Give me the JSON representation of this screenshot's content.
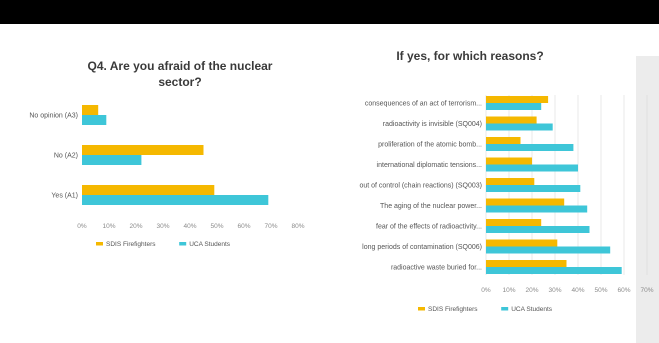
{
  "colors": {
    "sdis": "#f5b800",
    "uca": "#3ec6d8",
    "title": "#3a3a3a",
    "label": "#555555",
    "axis": "#8a8a8a",
    "grid": "#d9d9d9"
  },
  "chart_data": [
    {
      "type": "bar",
      "orientation": "horizontal",
      "title_lines": [
        "Q4. Are you afraid of the nuclear",
        "sector?"
      ],
      "categories": [
        "No opinion (A3)",
        "No (A2)",
        "Yes (A1)"
      ],
      "series": [
        {
          "name": "SDIS Firefighters",
          "values": [
            6,
            45,
            49
          ]
        },
        {
          "name": "UCA Students",
          "values": [
            9,
            22,
            69
          ]
        }
      ],
      "xlim": [
        0,
        80
      ],
      "xticks": [
        "0%",
        "10%",
        "20%",
        "30%",
        "40%",
        "50%",
        "60%",
        "70%",
        "80%"
      ],
      "grid": false,
      "legend": "bottom"
    },
    {
      "type": "bar",
      "orientation": "horizontal",
      "title_lines": [
        "If yes, for which reasons?"
      ],
      "categories": [
        "consequences of an act of terrorism...",
        "radioactivity is invisible (SQ004)",
        "proliferation of the atomic bomb...",
        "international diplomatic tensions...",
        "out of control (chain reactions) (SQ003)",
        "The aging of the nuclear power...",
        "fear of the effects of radioactivity...",
        "long periods of contamination (SQ006)",
        "radioactive waste buried for..."
      ],
      "series": [
        {
          "name": "SDIS Firefighters",
          "values": [
            27,
            22,
            15,
            20,
            21,
            34,
            24,
            31,
            35
          ]
        },
        {
          "name": "UCA Students",
          "values": [
            24,
            29,
            38,
            40,
            41,
            44,
            45,
            54,
            59
          ]
        }
      ],
      "xlim": [
        0,
        70
      ],
      "xticks": [
        "0%",
        "10%",
        "20%",
        "30%",
        "40%",
        "50%",
        "60%",
        "70%"
      ],
      "grid": true,
      "legend": "bottom"
    }
  ]
}
